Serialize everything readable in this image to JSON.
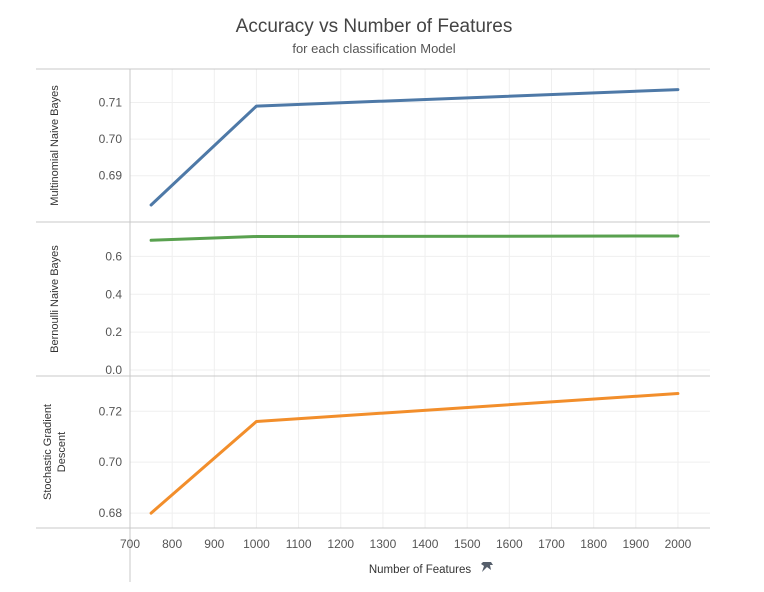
{
  "chart_data": {
    "type": "line",
    "title": "Accuracy vs Number of Features",
    "subtitle": "for each classification Model",
    "xlabel": "Number of Features",
    "x": [
      750,
      1000,
      2000
    ],
    "xlim": [
      700,
      2040
    ],
    "xticks": [
      "700",
      "800",
      "900",
      "1000",
      "1100",
      "1200",
      "1300",
      "1400",
      "1500",
      "1600",
      "1700",
      "1800",
      "1900",
      "2000"
    ],
    "grid": true,
    "panels": [
      {
        "name": "Multinomial Naive Bayes",
        "ylabel_lines": [
          "Multinomial Naive Bayes"
        ],
        "color": "#4e79a7",
        "values": [
          0.682,
          0.709,
          0.7135
        ],
        "ylim": [
          0.679,
          0.7175
        ],
        "yticks": [
          "0.69",
          "0.70",
          "0.71"
        ]
      },
      {
        "name": "Bernoulli Naive Bayes",
        "ylabel_lines": [
          "Bernoulli Naive Bayes"
        ],
        "color": "#59a14f",
        "values": [
          0.685,
          0.705,
          0.708
        ],
        "ylim": [
          0,
          0.75
        ],
        "yticks": [
          "0.0",
          "0.2",
          "0.4",
          "0.6"
        ]
      },
      {
        "name": "Stochastic Gradient Descent",
        "ylabel_lines": [
          "Stochastic Gradient",
          "Descent"
        ],
        "color": "#f28e2b",
        "values": [
          0.68,
          0.716,
          0.727
        ],
        "ylim": [
          0.6765,
          0.7315
        ],
        "yticks": [
          "0.68",
          "0.70",
          "0.72"
        ]
      }
    ]
  }
}
